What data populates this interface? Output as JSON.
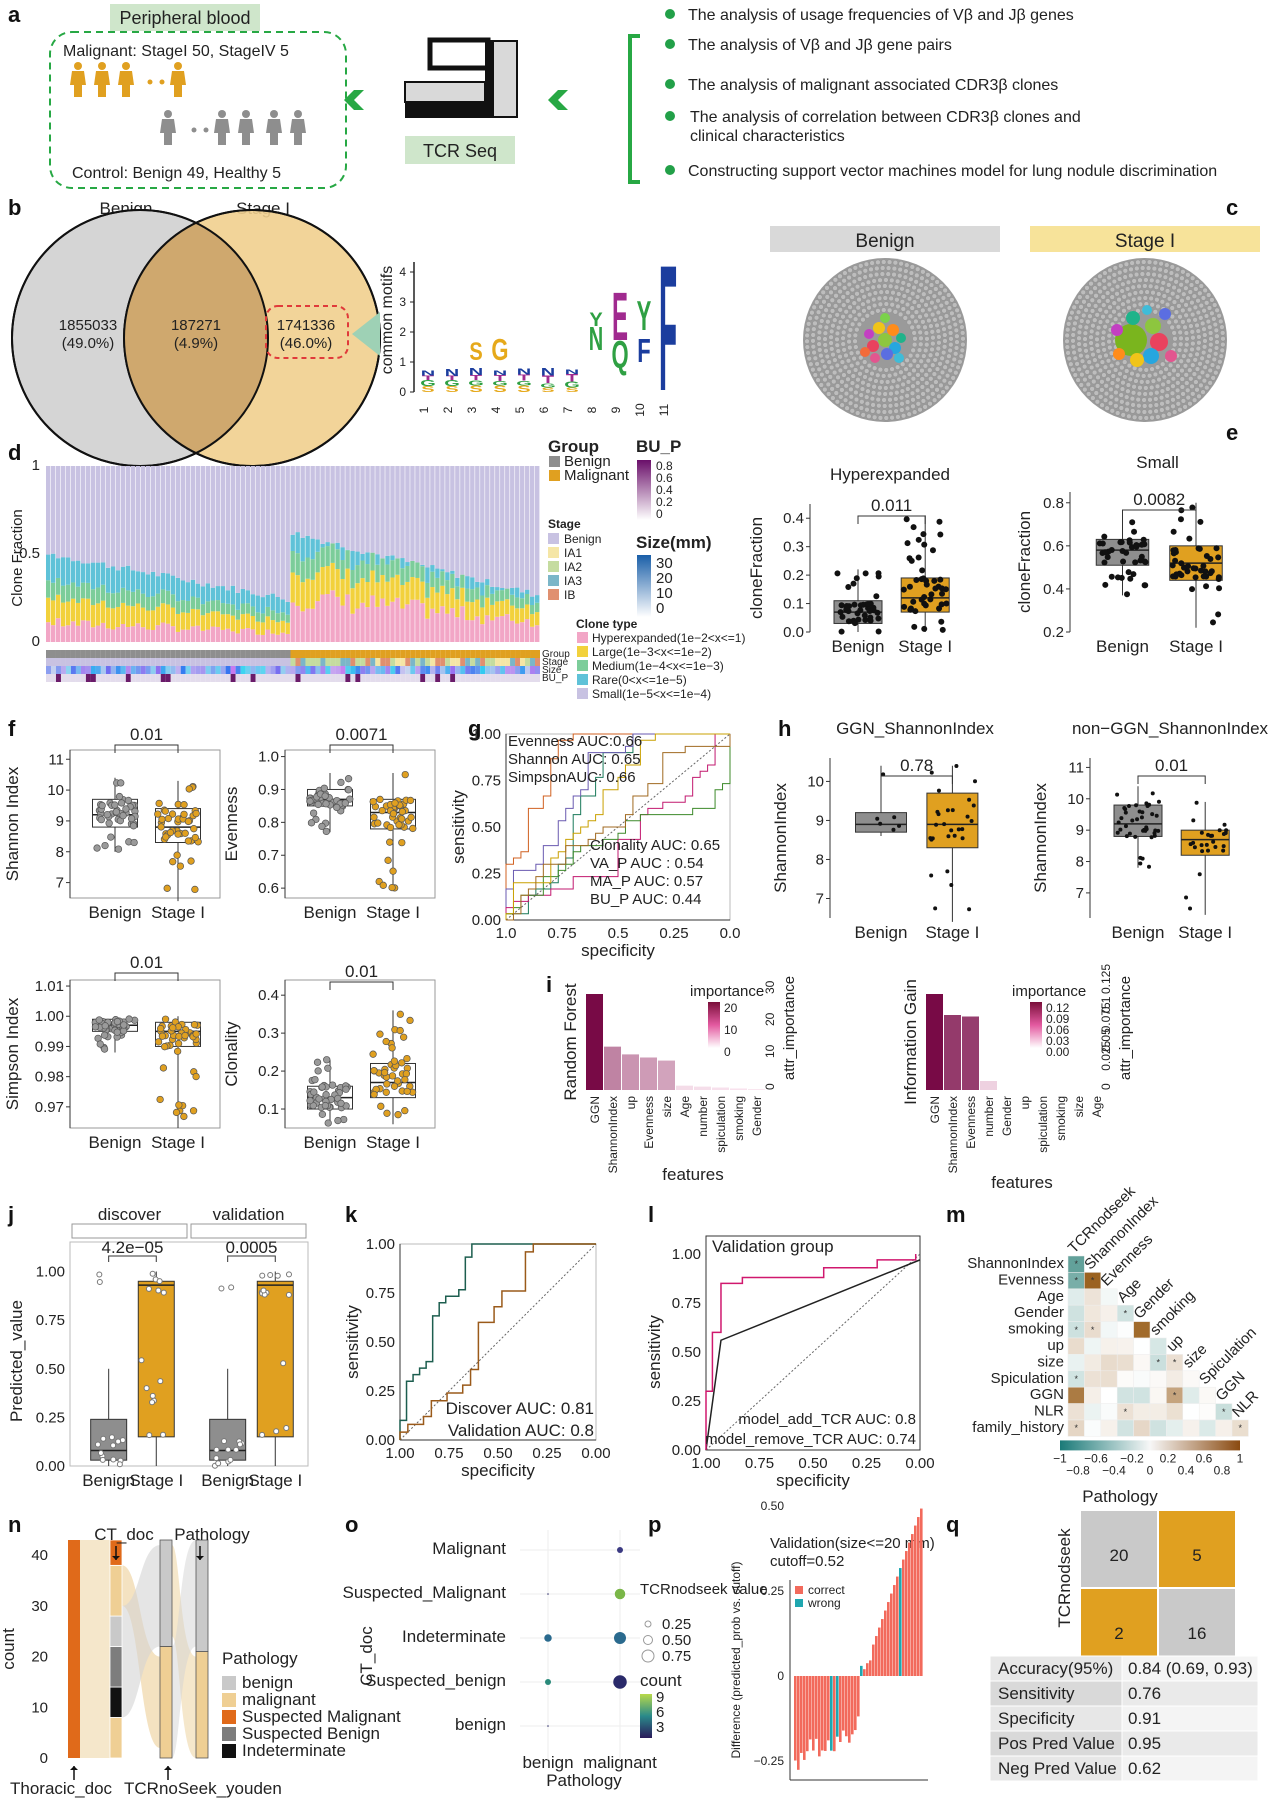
{
  "colors": {
    "benign": "#8e8e8e",
    "malignant": "#e0a020",
    "stage": "#f1d08f",
    "green": "#22a048",
    "pink": "#f2a6c6",
    "yellow": "#f2d13c",
    "mint": "#7ccd9a",
    "cyan": "#5fc2d8",
    "lav": "#c8c2e2",
    "dark": "#e66b16"
  },
  "panels": {
    "a": "a",
    "b": "b",
    "c": "c",
    "d": "d",
    "e": "e",
    "f": "f",
    "g": "g",
    "h": "h",
    "i": "i",
    "j": "j",
    "k": "k",
    "l": "l",
    "m": "m",
    "n": "n",
    "o": "o",
    "p": "p",
    "q": "q"
  },
  "panel_a": {
    "box_title": "Peripheral blood",
    "malignant_line": "Malignant: StageI 50, StageIV 5",
    "control_line": "Control: Benign 49, Healthy 5",
    "tcr": "TCR Seq",
    "bullets": [
      "The analysis of usage frequencies of Vβ and Jβ genes",
      "The analysis of Vβ and Jβ gene pairs",
      "The analysis of malignant associated CDR3β clones",
      "The analysis of correlation between CDR3β clones and clinical characteristics",
      "Constructing support vector machines model for lung nodule discrimination"
    ]
  },
  "panel_b": {
    "left_label": "Benign",
    "right_label": "Stage I",
    "left": "1855033",
    "left_pct": "(49.0%)",
    "mid": "187271",
    "mid_pct": "(4.9%)",
    "right": "1741336",
    "right_pct": "(46.0%)",
    "ylabel": "common motifs",
    "yticks": [
      "0",
      "1",
      "2",
      "3",
      "4"
    ],
    "xticks": [
      "1",
      "2",
      "3",
      "4",
      "5",
      "6",
      "7",
      "8",
      "9",
      "10",
      "11"
    ]
  },
  "panel_c": {
    "left": "Benign",
    "right": "Stage I"
  },
  "panel_d": {
    "ylabel": "Clone Fraction",
    "yticks": [
      "0",
      "0.5",
      "1"
    ],
    "group_title": "Group",
    "groups": [
      "Benign",
      "Malignant"
    ],
    "stage_title": "Stage",
    "stages": [
      "Benign",
      "IA1",
      "IA2",
      "IA3",
      "IB"
    ],
    "bu_title": "BU_P",
    "bu_ticks": [
      "0.8",
      "0.6",
      "0.4",
      "0.2",
      "0"
    ],
    "size_title": "Size(mm)",
    "size_ticks": [
      "30",
      "20",
      "10",
      "0"
    ],
    "clone_title": "Clone type",
    "clone_types": [
      "Hyperexpanded(1e−2<x<=1)",
      "Large(1e−3<x<=1e−2)",
      "Medium(1e−4<x<=1e−3)",
      "Rare(0<x<=1e−5)",
      "Small(1e−5<x<=1e−4)"
    ],
    "row_labels": [
      "Group",
      "Stage",
      "Size",
      "BU_P"
    ]
  },
  "panel_e": {
    "left_title": "Hyperexpanded",
    "left_p": "0.011",
    "left_yticks": [
      "0.0",
      "0.1",
      "0.2",
      "0.3",
      "0.4"
    ],
    "right_title": "Small",
    "right_p": "0.0082",
    "right_yticks": [
      "0.2",
      "0.4",
      "0.6",
      "0.8"
    ],
    "ylabel": "cloneFraction",
    "xticks": [
      "Benign",
      "Stage I"
    ]
  },
  "panel_f": {
    "plots": [
      {
        "ylabel": "Shannon Index",
        "p": "0.01",
        "yticks": [
          "7",
          "8",
          "9",
          "10",
          "11"
        ]
      },
      {
        "ylabel": "Evenness",
        "p": "0.0071",
        "yticks": [
          "0.6",
          "0.7",
          "0.8",
          "0.9",
          "1.0"
        ]
      },
      {
        "ylabel": "Simpson Index",
        "p": "0.01",
        "yticks": [
          "0.97",
          "0.98",
          "0.99",
          "1.00",
          "1.01"
        ]
      },
      {
        "ylabel": "Clonality",
        "p": "0.01",
        "yticks": [
          "0.1",
          "0.2",
          "0.3",
          "0.4"
        ]
      }
    ],
    "xticks": [
      "Benign",
      "Stage I"
    ]
  },
  "panel_g": {
    "ylabel": "sensitivity",
    "xlabel": "specificity",
    "yticks": [
      "0.00",
      "0.25",
      "0.50",
      "0.75",
      "1.00"
    ],
    "xticks": [
      "1.0",
      "0.75",
      "0.5",
      "0.25",
      "0.0"
    ],
    "legend": [
      {
        "text": "Evenness AUC:0.66",
        "color": "#1a7a5a"
      },
      {
        "text": "Shannon AUC: 0.65",
        "color": "#d06020"
      },
      {
        "text": "SimpsonAUC: 0.66",
        "color": "#6a5ab0"
      },
      {
        "text": "Clonality AUC: 0.65",
        "color": "#c2186f"
      },
      {
        "text": "VA_P AUC : 0.54",
        "color": "#3d8a2a"
      },
      {
        "text": "MA_P AUC: 0.57",
        "color": "#c9a000"
      },
      {
        "text": "BU_P AUC: 0.44",
        "color": "#a06a20"
      }
    ]
  },
  "panel_h": {
    "left_title": "GGN_ShannonIndex",
    "left_p": "0.78",
    "right_title": "non−GGN_ShannonIndex",
    "right_p": "0.01",
    "ylabel": "ShannonIndex",
    "left_yticks": [
      "7",
      "8",
      "9",
      "10"
    ],
    "right_yticks": [
      "7",
      "8",
      "9",
      "10",
      "11"
    ],
    "xticks": [
      "Benign",
      "Stage I"
    ]
  },
  "panel_i": {
    "left": {
      "ylabel": "Random Forest",
      "legend_title": "importance",
      "legend_ticks": [
        "20",
        "10",
        "0"
      ],
      "axis_label": "attr_importance",
      "axis_ticks": [
        "0",
        "10",
        "20",
        "30"
      ],
      "features": [
        "GGN",
        "ShannonIndex",
        "up",
        "Evenness",
        "size",
        "Age",
        "number",
        "spiculation",
        "smoking",
        "Gender"
      ],
      "values": [
        31,
        14,
        11.5,
        10.5,
        9.5,
        1.4,
        1.1,
        0.8,
        0.5,
        0.3
      ]
    },
    "right": {
      "ylabel": "Information Gain",
      "legend_title": "importance",
      "legend_ticks": [
        "0.12",
        "0.09",
        "0.06",
        "0.03",
        "0.00"
      ],
      "axis_label": "attr_importance",
      "axis_ticks": [
        "0",
        "0.025",
        "0.05",
        "0.075",
        "0.1",
        "0.125"
      ],
      "features": [
        "GGN",
        "ShannonIndex",
        "Evenness",
        "number",
        "Gender",
        "up",
        "spiculation",
        "smoking",
        "size",
        "Age"
      ],
      "values": [
        0.128,
        0.1,
        0.098,
        0.012,
        0,
        0,
        0,
        0,
        0,
        0
      ]
    },
    "xlabel": "features"
  },
  "panel_j": {
    "ylabel": "Predicted_value",
    "facets": [
      "discover",
      "validation"
    ],
    "p": [
      "4.2e−05",
      "0.0005"
    ],
    "yticks": [
      "0.00",
      "0.25",
      "0.50",
      "0.75",
      "1.00"
    ],
    "xticks": [
      "Benign",
      "Stage I",
      "Benign",
      "Stage I"
    ]
  },
  "panel_k": {
    "ylabel": "sensitivity",
    "xlabel": "specificity",
    "yticks": [
      "0.00",
      "0.25",
      "0.50",
      "0.75",
      "1.00"
    ],
    "xticks": [
      "1.00",
      "0.75",
      "0.50",
      "0.25",
      "0.00"
    ],
    "legend": [
      {
        "text": "Discover AUC: 0.81",
        "color": "#1d5e4f"
      },
      {
        "text": "Validation AUC: 0.8",
        "color": "#9a5a1a"
      }
    ]
  },
  "panel_l": {
    "title": "Validation group",
    "ylabel": "sensitivity",
    "xlabel": "specificity",
    "yticks": [
      "0.00",
      "0.25",
      "0.50",
      "0.75",
      "1.00"
    ],
    "xticks": [
      "1.00",
      "0.75",
      "0.50",
      "0.25",
      "0.00"
    ],
    "legend": [
      {
        "text": "model_add_TCR AUC: 0.8",
        "color": "#d0186e"
      },
      {
        "text": "model_remove_TCR AUC: 0.74",
        "color": "#222222"
      }
    ]
  },
  "panel_m": {
    "top_labels": [
      "TCRnodseek",
      "ShannonIndex",
      "Evenness",
      "Age",
      "Gender",
      "smoking",
      "up",
      "size",
      "Spiculation",
      "GGN",
      "NLR"
    ],
    "row_labels": [
      "ShannonIndex",
      "Evenness",
      "Age",
      "Gender",
      "smoking",
      "up",
      "size",
      "Spiculation",
      "GGN",
      "NLR",
      "family_history"
    ],
    "scale_ticks": [
      "−1",
      "−0.6",
      "−0.2",
      "0.2",
      "0.6",
      "1"
    ],
    "scale_ticks2": [
      "−0.8",
      "−0.4",
      "0",
      "0.4",
      "0.8"
    ]
  },
  "panel_n": {
    "ylabel": "count",
    "yticks": [
      "0",
      "10",
      "20",
      "30",
      "40"
    ],
    "axis_labels": [
      "CT_doc",
      "Pathology",
      "Thoracic_doc",
      "TCRnoSeek_youden"
    ],
    "legend_title": "Pathology",
    "legend": [
      {
        "text": "benign",
        "color": "#c9c9c9"
      },
      {
        "text": "malignant",
        "color": "#efcf94"
      },
      {
        "text": "Suspected Malignant",
        "color": "#e06a1a"
      },
      {
        "text": "Suspected Benign",
        "color": "#7d7d7d"
      },
      {
        "text": "Indeterminate",
        "color": "#111111"
      }
    ]
  },
  "panel_o": {
    "ylabel": "CT_doc",
    "xlabel": "Pathology",
    "rows": [
      "Malignant",
      "Suspected_Malignant",
      "Indeterminate",
      "Suspected_benign",
      "benign"
    ],
    "cols": [
      "benign",
      "malignant"
    ],
    "legend_title1": "TCRnodseek value",
    "legend_vals": [
      "0.25",
      "0.50",
      "0.75"
    ],
    "legend_title2": "count",
    "legend_counts": [
      "9",
      "6",
      "3"
    ]
  },
  "panel_p": {
    "title1": "Validation(size<=20 mm)",
    "title2": "cutoff=0.52",
    "ylabel": "Difference (predicted_prob vs. cutoff)",
    "yticks": [
      "0.50",
      "0.25",
      "0",
      "−0.25"
    ],
    "legend": [
      {
        "text": "correct",
        "color": "#f26a5c"
      },
      {
        "text": "wrong",
        "color": "#1fa7b0"
      }
    ]
  },
  "panel_q": {
    "title": "Pathology",
    "ylabel": "TCRnodseek",
    "cells": [
      "20",
      "5",
      "2",
      "16"
    ],
    "table": [
      [
        "Accuracy(95%)",
        "0.84 (0.69, 0.93)"
      ],
      [
        "Sensitivity",
        "0.76"
      ],
      [
        "Specificity",
        "0.91"
      ],
      [
        "Pos Pred Value",
        "0.95"
      ],
      [
        "Neg Pred Value",
        "0.62"
      ]
    ]
  }
}
